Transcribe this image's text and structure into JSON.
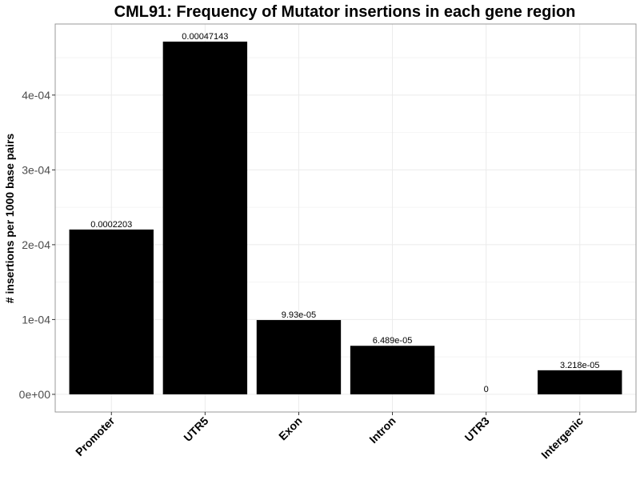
{
  "chart_data": {
    "type": "bar",
    "title": "CML91: Frequency of Mutator insertions in each gene region",
    "xlabel": "",
    "ylabel": "# insertions per 1000 base pairs",
    "categories": [
      "Promoter",
      "UTR5",
      "Exon",
      "Intron",
      "UTR3",
      "Intergenic"
    ],
    "values": [
      0.0002203,
      0.00047143,
      9.93e-05,
      6.489e-05,
      0,
      3.218e-05
    ],
    "data_labels": [
      "0.0002203",
      "0.00047143",
      "9.93e-05",
      "6.489e-05",
      "0",
      "3.218e-05"
    ],
    "yticks": [
      0,
      0.0001,
      0.0002,
      0.0003,
      0.0004
    ],
    "ytick_labels": [
      "0e+00",
      "1e-04",
      "2e-04",
      "3e-04",
      "4e-04"
    ],
    "ylim": [
      -2.36e-05,
      0.000495
    ],
    "grid": true,
    "bar_color": "#000000",
    "panel_border_color": "#999999",
    "grid_major_color": "#ebebeb",
    "grid_minor_color": "#f4f4f4"
  }
}
